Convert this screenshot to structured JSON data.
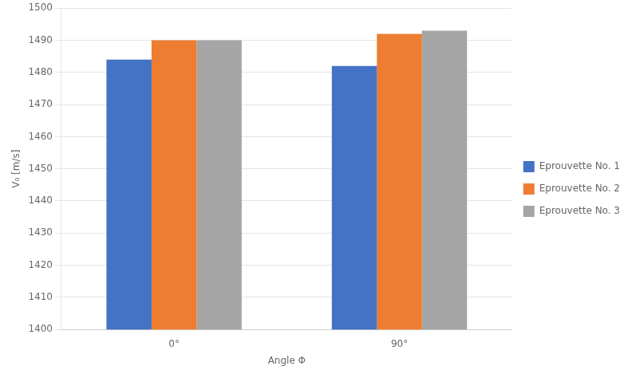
{
  "chart_data": {
    "type": "bar",
    "categories": [
      "0°",
      "90°"
    ],
    "series": [
      {
        "name": "Eprouvette No. 1",
        "color": "#4472C4",
        "values": [
          1484,
          1482
        ]
      },
      {
        "name": "Eprouvette No. 2",
        "color": "#ED7D31",
        "values": [
          1490,
          1492
        ]
      },
      {
        "name": "Eprouvette No. 3",
        "color": "#A5A5A5",
        "values": [
          1490,
          1493
        ]
      }
    ],
    "xlabel": "Angle Φ",
    "ylabel": "V₀ [m/s]",
    "ylim": [
      1400,
      1500
    ],
    "yticks": [
      1400,
      1410,
      1420,
      1430,
      1440,
      1450,
      1460,
      1470,
      1480,
      1490,
      1500
    ],
    "grid": true,
    "legend": "right"
  }
}
